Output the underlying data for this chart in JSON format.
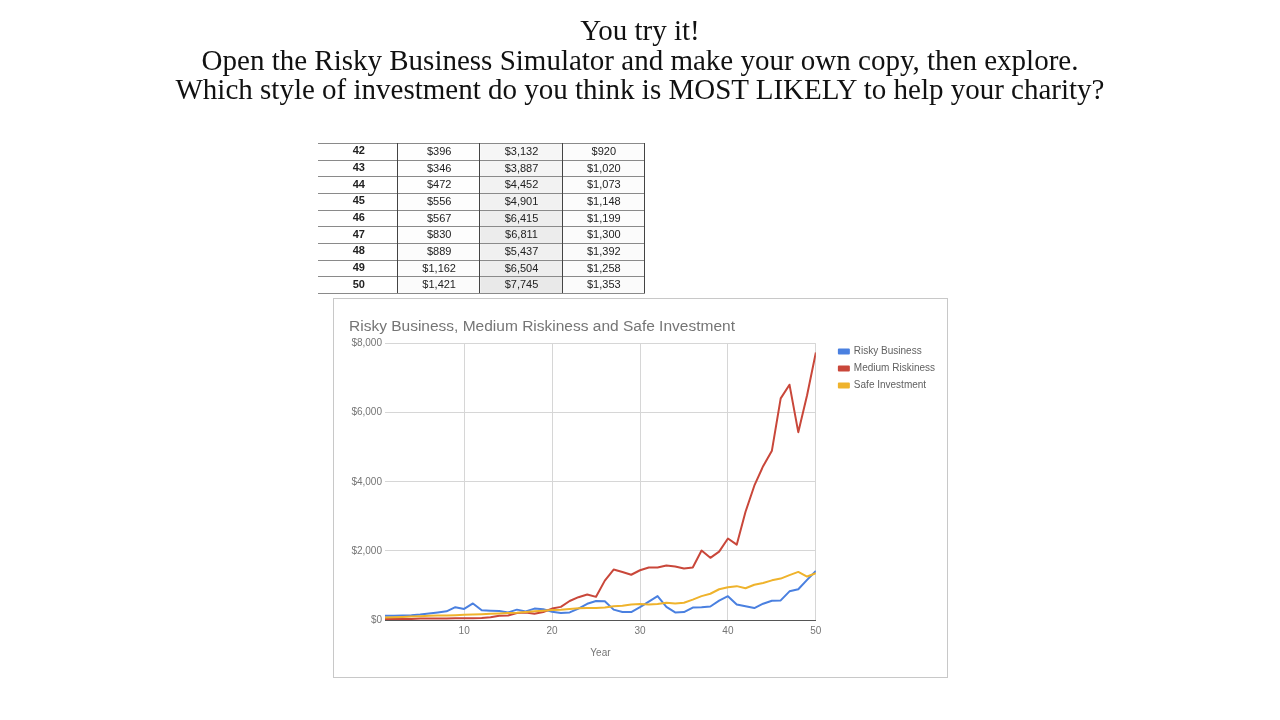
{
  "chart_data": [
    {
      "type": "heatmap",
      "grid": true,
      "categories": [
        null,
        null,
        null
      ],
      "y_categories": [
        "42",
        "43",
        "44",
        "45",
        "46",
        "47",
        "48",
        "49",
        "50"
      ],
      "cells": [
        [
          396,
          3132,
          920
        ],
        [
          346,
          3887,
          1020
        ],
        [
          472,
          4452,
          1073
        ],
        [
          556,
          4901,
          1148
        ],
        [
          567,
          6415,
          1199
        ],
        [
          830,
          6811,
          1300
        ],
        [
          889,
          5437,
          1392
        ],
        [
          1162,
          6504,
          1258
        ],
        [
          1421,
          7745,
          1353
        ]
      ],
      "cell_labels": [
        [
          "$396",
          "$3,132",
          "$920"
        ],
        [
          "$346",
          "$3,887",
          "$1,020"
        ],
        [
          "$472",
          "$4,452",
          "$1,073"
        ],
        [
          "$556",
          "$4,901",
          "$1,148"
        ],
        [
          "$567",
          "$6,415",
          "$1,199"
        ],
        [
          "$830",
          "$6,811",
          "$1,300"
        ],
        [
          "$889",
          "$5,437",
          "$1,392"
        ],
        [
          "$1,162",
          "$6,504",
          "$1,258"
        ],
        [
          "$1,421",
          "$7,745",
          "$1,353"
        ]
      ]
    },
    {
      "type": "line",
      "title": "Risky Business, Medium Riskiness and Safe Investment",
      "annotations": [
        "You try it!",
        "Open the Risky Business Simulator and make your own copy, then explore.",
        "Which style of investment do you think is MOST LIKELY to help your charity?"
      ],
      "xlabel": "Year",
      "x": [
        1,
        2,
        3,
        4,
        5,
        6,
        7,
        8,
        9,
        10,
        11,
        12,
        13,
        14,
        15,
        16,
        17,
        18,
        19,
        20,
        21,
        22,
        23,
        24,
        25,
        26,
        27,
        28,
        29,
        30,
        31,
        32,
        33,
        34,
        35,
        36,
        37,
        38,
        39,
        40,
        41,
        42,
        43,
        44,
        45,
        46,
        47,
        48,
        49,
        50
      ],
      "xlim": [
        1,
        50
      ],
      "xticks": [
        10,
        20,
        30,
        40,
        50
      ],
      "ylim": [
        0,
        8000
      ],
      "yticks": [
        {
          "value": 0,
          "label": "$0"
        },
        {
          "value": 2000,
          "label": "$2,000"
        },
        {
          "value": 4000,
          "label": "$4,000"
        },
        {
          "value": 6000,
          "label": "$6,000"
        },
        {
          "value": 8000,
          "label": "$8,000"
        }
      ],
      "grid": true,
      "legend": "right",
      "series": [
        {
          "name": "Risky Business",
          "color": "#4a80e0",
          "values": [
            120,
            120,
            130,
            140,
            160,
            190,
            220,
            250,
            370,
            320,
            480,
            280,
            270,
            260,
            220,
            300,
            250,
            330,
            310,
            240,
            200,
            220,
            330,
            470,
            550,
            540,
            300,
            230,
            230,
            370,
            530,
            690,
            380,
            220,
            230,
            360,
            370,
            390,
            560,
            690,
            450,
            396,
            346,
            472,
            556,
            567,
            830,
            889,
            1162,
            1421
          ]
        },
        {
          "name": "Medium Riskiness",
          "color": "#c9473a",
          "values": [
            30,
            30,
            30,
            30,
            40,
            40,
            40,
            40,
            50,
            50,
            50,
            60,
            80,
            120,
            130,
            200,
            220,
            180,
            230,
            330,
            380,
            550,
            660,
            740,
            670,
            1140,
            1460,
            1390,
            1310,
            1440,
            1520,
            1520,
            1580,
            1550,
            1490,
            1520,
            2010,
            1800,
            1980,
            2360,
            2180,
            3132,
            3887,
            4452,
            4901,
            6415,
            6811,
            5437,
            6504,
            7745
          ]
        },
        {
          "name": "Safe Investment",
          "color": "#efb32c",
          "values": [
            70,
            80,
            90,
            100,
            110,
            120,
            130,
            130,
            140,
            150,
            160,
            170,
            180,
            190,
            200,
            210,
            230,
            250,
            270,
            290,
            300,
            320,
            340,
            350,
            350,
            360,
            400,
            410,
            450,
            460,
            450,
            460,
            500,
            480,
            500,
            590,
            690,
            760,
            890,
            950,
            980,
            920,
            1020,
            1073,
            1148,
            1199,
            1300,
            1392,
            1258,
            1353
          ]
        }
      ]
    }
  ]
}
